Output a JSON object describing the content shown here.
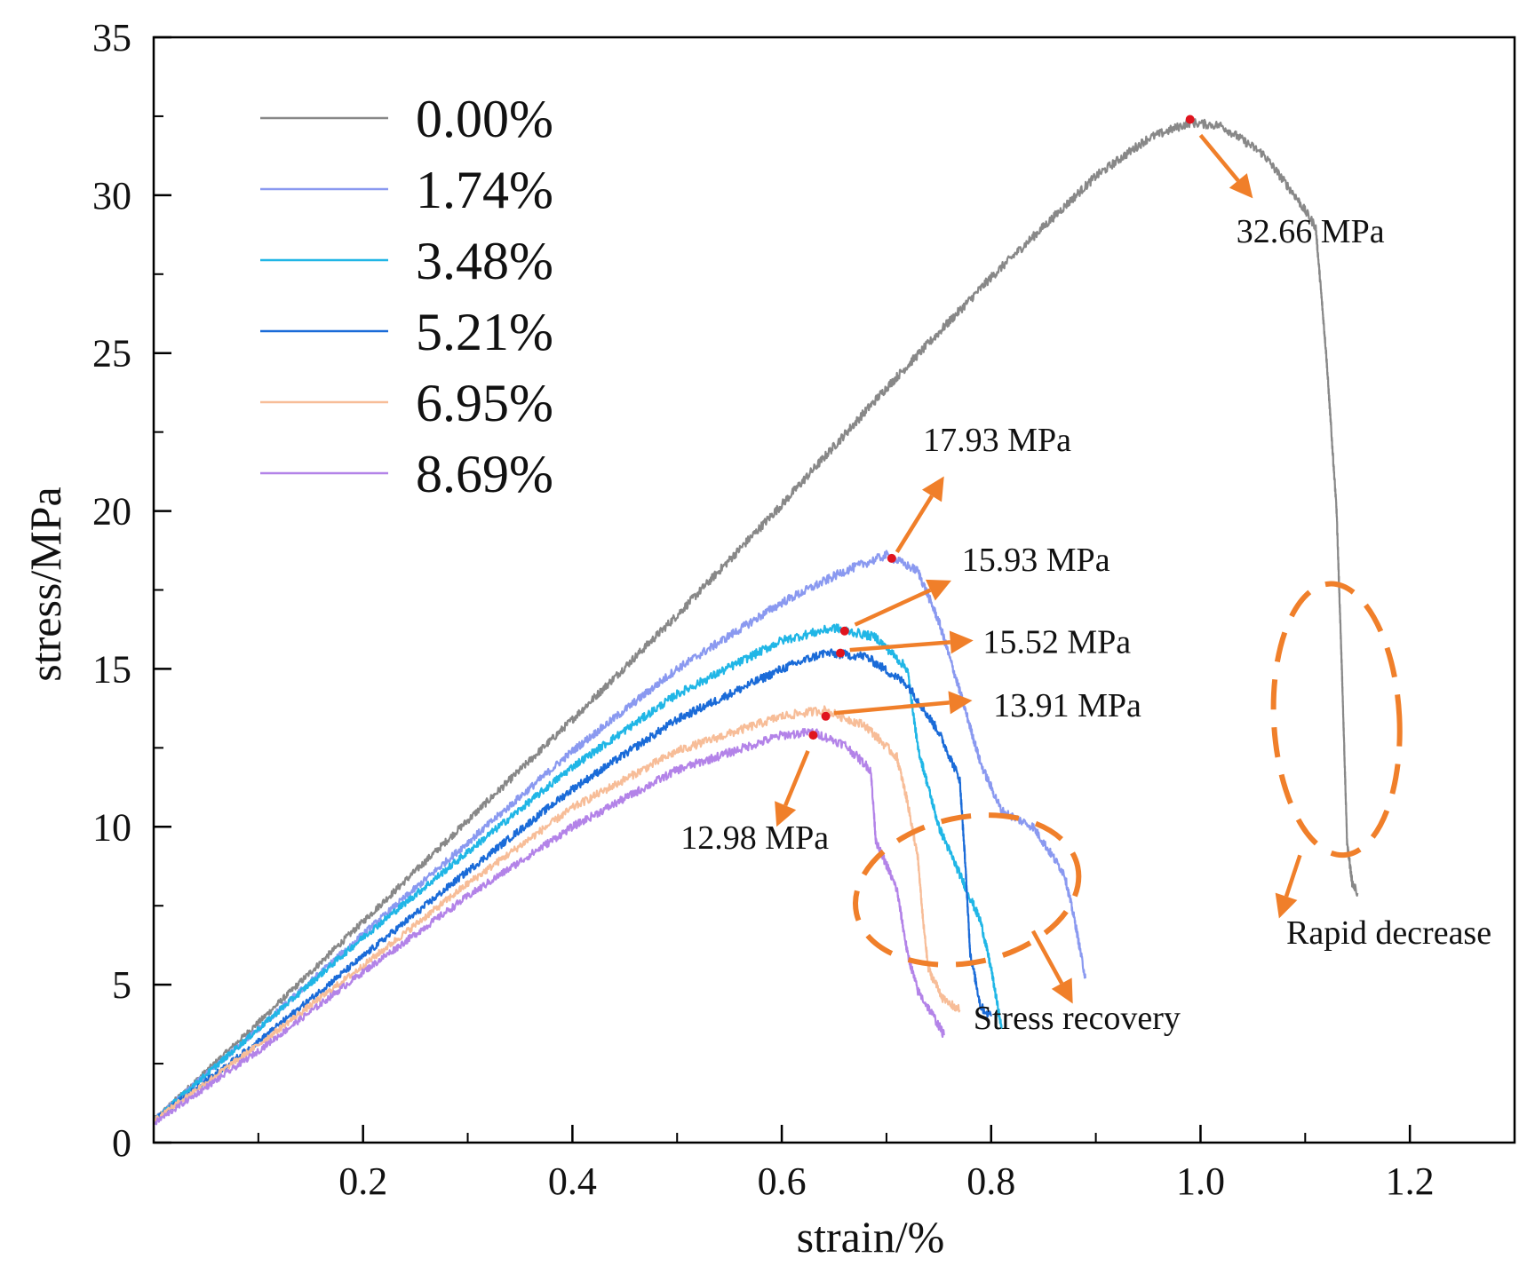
{
  "chart_data": {
    "type": "line",
    "xlabel": "strain/%",
    "ylabel": "stress/MPa",
    "xlim": [
      0,
      1.3
    ],
    "ylim": [
      0,
      35
    ],
    "x_ticks": [
      0.2,
      0.4,
      0.6,
      0.8,
      1.0,
      1.2
    ],
    "x_tick_labels": [
      "0.2",
      "0.4",
      "0.6",
      "0.8",
      "1.0",
      "1.2"
    ],
    "y_ticks": [
      0,
      5,
      10,
      15,
      20,
      25,
      30,
      35
    ],
    "y_tick_labels": [
      "0",
      "5",
      "10",
      "15",
      "20",
      "25",
      "30",
      "35"
    ],
    "legend_position": "top-left",
    "colors": {
      "annotation": "#f07f2a",
      "peak_marker": "#e0141e",
      "axis": "#000000"
    },
    "series": [
      {
        "name": "0.00%",
        "color": "#888888",
        "points": [
          [
            0,
            0.7
          ],
          [
            0.1,
            3.8
          ],
          [
            0.2,
            7.0
          ],
          [
            0.3,
            10.2
          ],
          [
            0.4,
            13.4
          ],
          [
            0.5,
            16.7
          ],
          [
            0.6,
            20.2
          ],
          [
            0.7,
            23.9
          ],
          [
            0.8,
            27.4
          ],
          [
            0.9,
            30.6
          ],
          [
            0.95,
            31.8
          ],
          [
            0.99,
            32.3
          ],
          [
            1.02,
            32.2
          ],
          [
            1.06,
            31.3
          ],
          [
            1.09,
            30.0
          ],
          [
            1.11,
            29.0
          ],
          [
            1.12,
            25.0
          ],
          [
            1.13,
            20.0
          ],
          [
            1.135,
            15.0
          ],
          [
            1.14,
            9.5
          ],
          [
            1.145,
            8.2
          ],
          [
            1.15,
            7.9
          ]
        ]
      },
      {
        "name": "1.74%",
        "color": "#8a99f0",
        "points": [
          [
            0,
            0.7
          ],
          [
            0.1,
            3.6
          ],
          [
            0.2,
            6.6
          ],
          [
            0.3,
            9.5
          ],
          [
            0.4,
            12.4
          ],
          [
            0.5,
            15.0
          ],
          [
            0.6,
            17.1
          ],
          [
            0.66,
            18.1
          ],
          [
            0.7,
            18.6
          ],
          [
            0.73,
            18.1
          ],
          [
            0.75,
            16.5
          ],
          [
            0.77,
            14.3
          ],
          [
            0.79,
            12.0
          ],
          [
            0.81,
            10.5
          ],
          [
            0.84,
            10.0
          ],
          [
            0.87,
            8.5
          ],
          [
            0.88,
            7.0
          ],
          [
            0.89,
            5.2
          ]
        ]
      },
      {
        "name": "3.48%",
        "color": "#20b6e6",
        "points": [
          [
            0,
            0.7
          ],
          [
            0.1,
            3.6
          ],
          [
            0.2,
            6.5
          ],
          [
            0.3,
            9.2
          ],
          [
            0.4,
            11.9
          ],
          [
            0.5,
            14.2
          ],
          [
            0.6,
            15.9
          ],
          [
            0.65,
            16.3
          ],
          [
            0.69,
            16.0
          ],
          [
            0.72,
            15.0
          ],
          [
            0.73,
            12.5
          ],
          [
            0.75,
            10.0
          ],
          [
            0.77,
            8.5
          ],
          [
            0.79,
            7.0
          ],
          [
            0.8,
            5.5
          ],
          [
            0.81,
            3.6
          ]
        ]
      },
      {
        "name": "5.21%",
        "color": "#1a6bd8",
        "points": [
          [
            0,
            0.7
          ],
          [
            0.1,
            3.2
          ],
          [
            0.2,
            5.9
          ],
          [
            0.3,
            8.6
          ],
          [
            0.4,
            11.2
          ],
          [
            0.5,
            13.4
          ],
          [
            0.6,
            15.0
          ],
          [
            0.64,
            15.5
          ],
          [
            0.68,
            15.4
          ],
          [
            0.72,
            14.5
          ],
          [
            0.75,
            13.0
          ],
          [
            0.77,
            11.5
          ],
          [
            0.775,
            9.0
          ],
          [
            0.78,
            6.0
          ],
          [
            0.79,
            4.3
          ],
          [
            0.8,
            4.0
          ]
        ]
      },
      {
        "name": "6.95%",
        "color": "#f7bd98",
        "points": [
          [
            0,
            0.7
          ],
          [
            0.1,
            3.1
          ],
          [
            0.2,
            5.6
          ],
          [
            0.3,
            8.2
          ],
          [
            0.4,
            10.6
          ],
          [
            0.5,
            12.4
          ],
          [
            0.6,
            13.5
          ],
          [
            0.64,
            13.7
          ],
          [
            0.68,
            13.2
          ],
          [
            0.71,
            12.2
          ],
          [
            0.72,
            10.8
          ],
          [
            0.73,
            9.0
          ],
          [
            0.735,
            7.0
          ],
          [
            0.74,
            5.5
          ],
          [
            0.755,
            4.5
          ],
          [
            0.77,
            4.2
          ]
        ]
      },
      {
        "name": "8.69%",
        "color": "#b383e8",
        "points": [
          [
            0,
            0.6
          ],
          [
            0.1,
            2.9
          ],
          [
            0.2,
            5.4
          ],
          [
            0.3,
            7.8
          ],
          [
            0.4,
            10.0
          ],
          [
            0.5,
            11.8
          ],
          [
            0.6,
            12.9
          ],
          [
            0.63,
            13.0
          ],
          [
            0.66,
            12.6
          ],
          [
            0.685,
            11.8
          ],
          [
            0.69,
            9.5
          ],
          [
            0.7,
            8.8
          ],
          [
            0.71,
            8.0
          ],
          [
            0.72,
            6.0
          ],
          [
            0.73,
            4.8
          ],
          [
            0.745,
            4.0
          ],
          [
            0.755,
            3.4
          ]
        ]
      }
    ],
    "peak_markers": [
      {
        "x": 0.99,
        "y": 32.4
      },
      {
        "x": 0.705,
        "y": 18.5
      },
      {
        "x": 0.66,
        "y": 16.2
      },
      {
        "x": 0.656,
        "y": 15.5
      },
      {
        "x": 0.642,
        "y": 13.5
      },
      {
        "x": 0.63,
        "y": 12.9
      }
    ],
    "annotations": [
      {
        "text": "32.66 MPa",
        "from": [
          1.0,
          31.9
        ],
        "to": [
          1.05,
          29.9
        ],
        "label_at": [
          1.105,
          28.5
        ],
        "anchor": "middle"
      },
      {
        "text": "17.93 MPa",
        "from": [
          0.71,
          18.7
        ],
        "to": [
          0.755,
          21.1
        ],
        "label_at": [
          0.735,
          21.9
        ],
        "anchor": "start"
      },
      {
        "text": "15.93 MPa",
        "from": [
          0.67,
          16.4
        ],
        "to": [
          0.762,
          17.8
        ],
        "label_at": [
          0.772,
          18.1
        ],
        "anchor": "start"
      },
      {
        "text": "15.52 MPa",
        "from": [
          0.665,
          15.6
        ],
        "to": [
          0.783,
          15.9
        ],
        "label_at": [
          0.792,
          15.5
        ],
        "anchor": "start"
      },
      {
        "text": "13.91 MPa",
        "from": [
          0.65,
          13.6
        ],
        "to": [
          0.782,
          14.0
        ],
        "label_at": [
          0.802,
          13.5
        ],
        "anchor": "start"
      },
      {
        "text": "12.98 MPa",
        "from": [
          0.625,
          12.4
        ],
        "to": [
          0.595,
          10.0
        ],
        "label_at": [
          0.645,
          9.3
        ],
        "anchor": "end"
      },
      {
        "text": "Stress recovery",
        "from": [
          0.84,
          6.7
        ],
        "to": [
          0.878,
          4.4
        ],
        "label_at": [
          0.783,
          3.6
        ],
        "anchor": "start"
      },
      {
        "text": "Rapid decrease",
        "from": [
          1.095,
          9.1
        ],
        "to": [
          1.075,
          7.1
        ],
        "label_at": [
          1.18,
          6.3
        ],
        "anchor": "middle"
      }
    ],
    "highlight_regions": [
      {
        "label": "rapid-decrease-region",
        "cx": 1.13,
        "cy": 13.4,
        "rx": 0.06,
        "ry": 4.3,
        "angle": -3
      },
      {
        "label": "stress-recovery-region",
        "cx": 0.777,
        "cy": 8.0,
        "rx": 0.108,
        "ry": 2.3,
        "angle": -12
      }
    ]
  }
}
